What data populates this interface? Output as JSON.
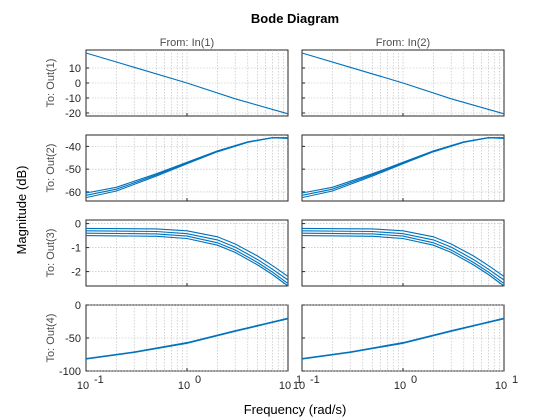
{
  "chart_data": {
    "type": "line",
    "title": "Bode Diagram",
    "xlabel": "Frequency  (rad/s)",
    "ylabel": "Magnitude (dB)",
    "xscale": "log",
    "xlim": [
      0.1,
      10
    ],
    "x_ticks": [
      0.1,
      1,
      10
    ],
    "x_tick_labels": [
      [
        "10",
        "-1"
      ],
      [
        "10",
        "0"
      ],
      [
        "10",
        "1"
      ]
    ],
    "grid": true,
    "columns": [
      "From: In(1)",
      "From: In(2)"
    ],
    "rows": [
      {
        "label": "To: Out(1)",
        "ylim": [
          -22,
          22
        ],
        "yticks": [
          -20,
          -10,
          0,
          10
        ],
        "curves": [
          {
            "x": [
              0.1,
              0.3,
              1,
              3,
              10
            ],
            "y": [
              20,
              10.5,
              0,
              -10.5,
              -20.5
            ]
          }
        ]
      },
      {
        "label": "To: Out(2)",
        "ylim": [
          -64,
          -35
        ],
        "yticks": [
          -60,
          -50,
          -40
        ],
        "curves": [
          {
            "x": [
              0.1,
              0.2,
              0.5,
              1,
              2,
              4,
              7,
              10
            ],
            "y": [
              -60.5,
              -58,
              -52,
              -47,
              -42,
              -38,
              -36.2,
              -36.2
            ]
          },
          {
            "x": [
              0.1,
              0.2,
              0.5,
              1,
              2,
              4,
              7,
              10
            ],
            "y": [
              -61.5,
              -58.8,
              -52.5,
              -47.3,
              -42.2,
              -38.1,
              -36.2,
              -36.3
            ]
          },
          {
            "x": [
              0.1,
              0.2,
              0.5,
              1,
              2,
              4,
              7,
              10
            ],
            "y": [
              -62.5,
              -59.6,
              -53,
              -47.6,
              -42.4,
              -38.2,
              -36.2,
              -36.5
            ]
          }
        ]
      },
      {
        "label": "To: Out(3)",
        "ylim": [
          -2.6,
          0.15
        ],
        "yticks": [
          -2,
          -1,
          0
        ],
        "curves": [
          {
            "x": [
              0.1,
              0.5,
              1,
              2,
              3,
              5,
              7,
              10
            ],
            "y": [
              -0.2,
              -0.22,
              -0.3,
              -0.55,
              -0.85,
              -1.35,
              -1.75,
              -2.2
            ]
          },
          {
            "x": [
              0.1,
              0.5,
              1,
              2,
              3,
              5,
              7,
              10
            ],
            "y": [
              -0.3,
              -0.33,
              -0.42,
              -0.68,
              -0.98,
              -1.5,
              -1.9,
              -2.35
            ]
          },
          {
            "x": [
              0.1,
              0.5,
              1,
              2,
              3,
              5,
              7,
              10
            ],
            "y": [
              -0.4,
              -0.43,
              -0.52,
              -0.8,
              -1.1,
              -1.62,
              -2.02,
              -2.5
            ]
          },
          {
            "x": [
              0.1,
              0.5,
              1,
              2,
              3,
              5,
              7,
              10
            ],
            "y": [
              -0.5,
              -0.53,
              -0.62,
              -0.9,
              -1.2,
              -1.72,
              -2.12,
              -2.6
            ]
          }
        ]
      },
      {
        "label": "To: Out(4)",
        "ylim": [
          -100,
          0
        ],
        "yticks": [
          -100,
          -50,
          0
        ],
        "curves": [
          {
            "x": [
              0.1,
              0.3,
              1,
              3,
              6,
              10
            ],
            "y": [
              -81,
              -71,
              -57,
              -39,
              -28,
              -20
            ]
          },
          {
            "x": [
              0.1,
              0.3,
              1,
              3,
              6,
              10
            ],
            "y": [
              -82,
              -72,
              -58,
              -40,
              -29,
              -21
            ]
          }
        ]
      }
    ]
  }
}
